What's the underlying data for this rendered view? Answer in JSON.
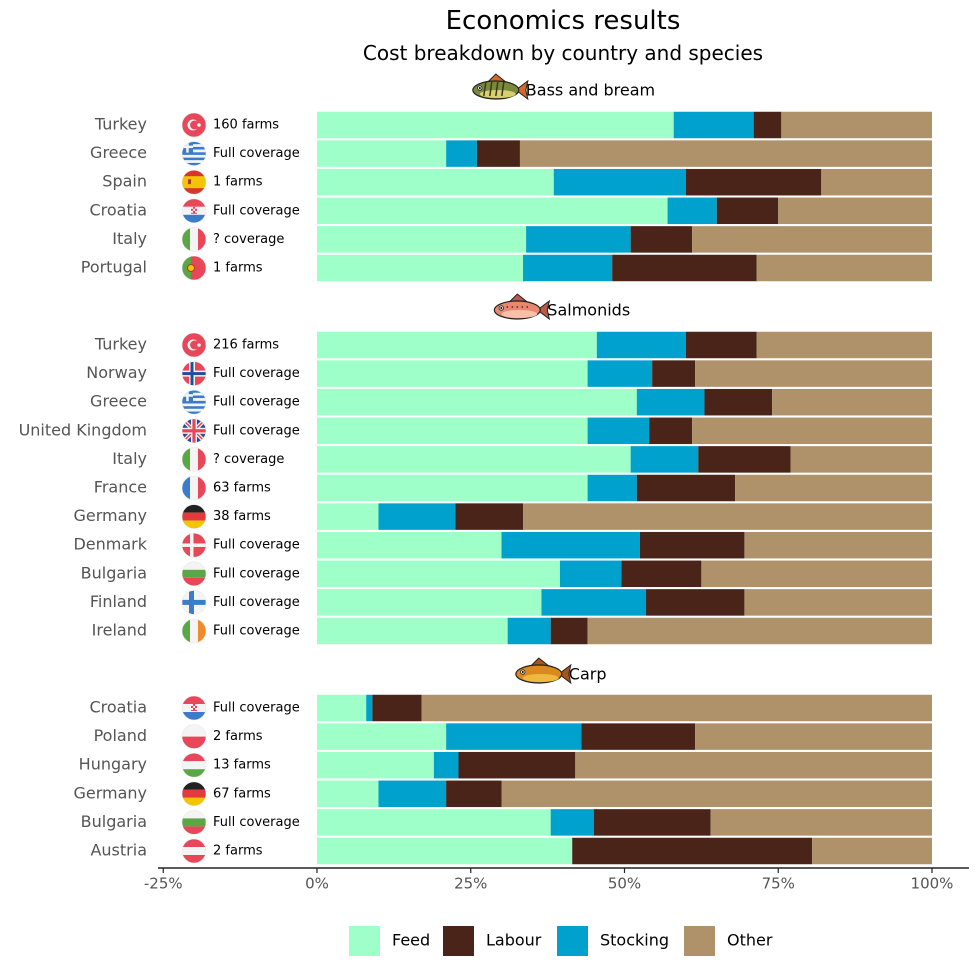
{
  "chart_data": {
    "type": "bar",
    "orientation": "horizontal",
    "stacked": true,
    "title": "Economics results",
    "subtitle": "Cost breakdown by country and species",
    "xlim": [
      -25,
      100
    ],
    "xticks": [
      -25,
      0,
      25,
      50,
      75,
      100
    ],
    "xtick_labels": [
      "-25%",
      "0%",
      "25%",
      "50%",
      "75%",
      "100%"
    ],
    "series_names": [
      "Feed",
      "Stocking",
      "Labour",
      "Other"
    ],
    "colors": {
      "Feed": "#9effc8",
      "Stocking": "#00a1cc",
      "Labour": "#4a2418",
      "Other": "#b0926a"
    },
    "legend": {
      "position": "bottom",
      "order": [
        "Feed",
        "Labour",
        "Stocking",
        "Other"
      ]
    },
    "groups": [
      {
        "name": "Bass and bream",
        "icon": "bass-fish-icon",
        "rows": [
          {
            "country": "Turkey",
            "coverage": "160 farms",
            "flag": "turkey",
            "feed": 58,
            "stocking": 13,
            "labour": 4.5,
            "other": 24.5
          },
          {
            "country": "Greece",
            "coverage": "Full coverage",
            "flag": "greece",
            "feed": 21,
            "stocking": 5,
            "labour": 7,
            "other": 67
          },
          {
            "country": "Spain",
            "coverage": "1 farms",
            "flag": "spain",
            "feed": 38.5,
            "stocking": 21.5,
            "labour": 22,
            "other": 18
          },
          {
            "country": "Croatia",
            "coverage": "Full coverage",
            "flag": "croatia",
            "feed": 57,
            "stocking": 8,
            "labour": 10,
            "other": 25
          },
          {
            "country": "Italy",
            "coverage": "? coverage",
            "flag": "italy",
            "feed": 34,
            "stocking": 17,
            "labour": 10,
            "other": 39
          },
          {
            "country": "Portugal",
            "coverage": "1 farms",
            "flag": "portugal",
            "feed": 33.5,
            "stocking": 14.5,
            "labour": 23.5,
            "other": 28.5
          }
        ]
      },
      {
        "name": "Salmonids",
        "icon": "salmon-fish-icon",
        "rows": [
          {
            "country": "Turkey",
            "coverage": "216 farms",
            "flag": "turkey",
            "feed": 45.5,
            "stocking": 14.5,
            "labour": 11.5,
            "other": 28.5
          },
          {
            "country": "Norway",
            "coverage": "Full coverage",
            "flag": "norway",
            "feed": 44,
            "stocking": 10.5,
            "labour": 7,
            "other": 38.5
          },
          {
            "country": "Greece",
            "coverage": "Full coverage",
            "flag": "greece",
            "feed": 52,
            "stocking": 11,
            "labour": 11,
            "other": 26
          },
          {
            "country": "United Kingdom",
            "coverage": "Full coverage",
            "flag": "uk",
            "feed": 44,
            "stocking": 10,
            "labour": 7,
            "other": 39
          },
          {
            "country": "Italy",
            "coverage": "? coverage",
            "flag": "italy",
            "feed": 51,
            "stocking": 11,
            "labour": 15,
            "other": 23
          },
          {
            "country": "France",
            "coverage": "63 farms",
            "flag": "france",
            "feed": 44,
            "stocking": 8,
            "labour": 16,
            "other": 32
          },
          {
            "country": "Germany",
            "coverage": "38 farms",
            "flag": "germany",
            "feed": 10,
            "stocking": 12.5,
            "labour": 11,
            "other": 66.5
          },
          {
            "country": "Denmark",
            "coverage": "Full coverage",
            "flag": "denmark",
            "feed": 30,
            "stocking": 22.5,
            "labour": 17,
            "other": 30.5
          },
          {
            "country": "Bulgaria",
            "coverage": "Full coverage",
            "flag": "bulgaria",
            "feed": 39.5,
            "stocking": 10,
            "labour": 13,
            "other": 37.5
          },
          {
            "country": "Finland",
            "coverage": "Full coverage",
            "flag": "finland",
            "feed": 36.5,
            "stocking": 17,
            "labour": 16,
            "other": 30.5
          },
          {
            "country": "Ireland",
            "coverage": "Full coverage",
            "flag": "ireland",
            "feed": 31,
            "stocking": 7,
            "labour": 6,
            "other": 56
          }
        ]
      },
      {
        "name": "Carp",
        "icon": "carp-fish-icon",
        "rows": [
          {
            "country": "Croatia",
            "coverage": "Full coverage",
            "flag": "croatia",
            "feed": 8,
            "stocking": 1,
            "labour": 8,
            "other": 83
          },
          {
            "country": "Poland",
            "coverage": "2 farms",
            "flag": "poland",
            "feed": 21,
            "stocking": 22,
            "labour": 18.5,
            "other": 38.5
          },
          {
            "country": "Hungary",
            "coverage": "13 farms",
            "flag": "hungary",
            "feed": 19,
            "stocking": 4,
            "labour": 19,
            "other": 58
          },
          {
            "country": "Germany",
            "coverage": "67 farms",
            "flag": "germany",
            "feed": 10,
            "stocking": 11,
            "labour": 9,
            "other": 70
          },
          {
            "country": "Bulgaria",
            "coverage": "Full coverage",
            "flag": "bulgaria",
            "feed": 38,
            "stocking": 7,
            "labour": 19,
            "other": 36
          },
          {
            "country": "Austria",
            "coverage": "2 farms",
            "flag": "austria",
            "feed": 41.5,
            "stocking": 0,
            "labour": 39,
            "other": 19.5
          }
        ]
      }
    ]
  }
}
